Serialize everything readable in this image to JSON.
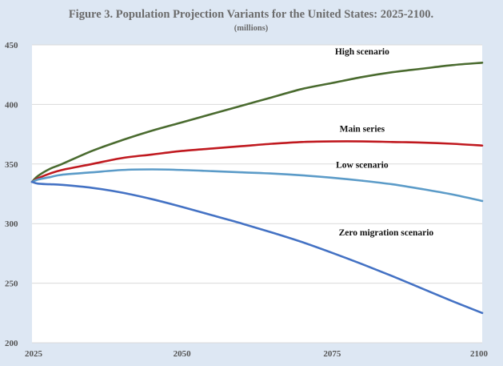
{
  "chart_data": {
    "type": "line",
    "title": "Figure 3. Population Projection Variants for the United States: 2025-2100.",
    "subtitle": "(millions)",
    "xlabel": "",
    "ylabel": "",
    "xlim": [
      2025,
      2100
    ],
    "ylim": [
      200,
      450
    ],
    "x_ticks": [
      2025,
      2050,
      2075,
      2100
    ],
    "y_ticks": [
      200,
      250,
      300,
      350,
      400,
      450
    ],
    "grid": "horizontal",
    "background_color": "#dde7f3",
    "plot_background_color": "#ffffff",
    "grid_color": "#d9d9d9",
    "legend": "none (series labeled directly on chart)",
    "x": [
      2025,
      2026,
      2028,
      2030,
      2035,
      2040,
      2045,
      2050,
      2055,
      2060,
      2065,
      2070,
      2075,
      2080,
      2085,
      2090,
      2095,
      2100
    ],
    "series": [
      {
        "name": "High scenario",
        "color": "#4a6b2f",
        "values": [
          335,
          340,
          346,
          350,
          361,
          370,
          378,
          385,
          392,
          399,
          406,
          413,
          418,
          423,
          427,
          430,
          433,
          435
        ],
        "label_at": [
          2080,
          442
        ]
      },
      {
        "name": "Main series",
        "color": "#c0191f",
        "values": [
          335,
          338,
          342,
          345,
          350,
          355,
          358,
          361,
          363,
          365,
          367,
          368.5,
          369,
          369,
          368.5,
          368,
          367,
          365.5
        ],
        "label_at": [
          2080,
          377
        ]
      },
      {
        "name": "Low scenario",
        "color": "#5b9bc8",
        "values": [
          335,
          337,
          339,
          341,
          343,
          345,
          345.5,
          345,
          344,
          343,
          342,
          340.5,
          338.5,
          336,
          333,
          329,
          324.5,
          319
        ],
        "label_at": [
          2080,
          347
        ]
      },
      {
        "name": "Zero migration scenario",
        "color": "#4472c4",
        "values": [
          335,
          333.5,
          333,
          332.5,
          330,
          326,
          320.5,
          314,
          307,
          300,
          292.5,
          284.5,
          275.5,
          266,
          256,
          245.5,
          235,
          225
        ],
        "label_at": [
          2084,
          290
        ]
      }
    ]
  }
}
